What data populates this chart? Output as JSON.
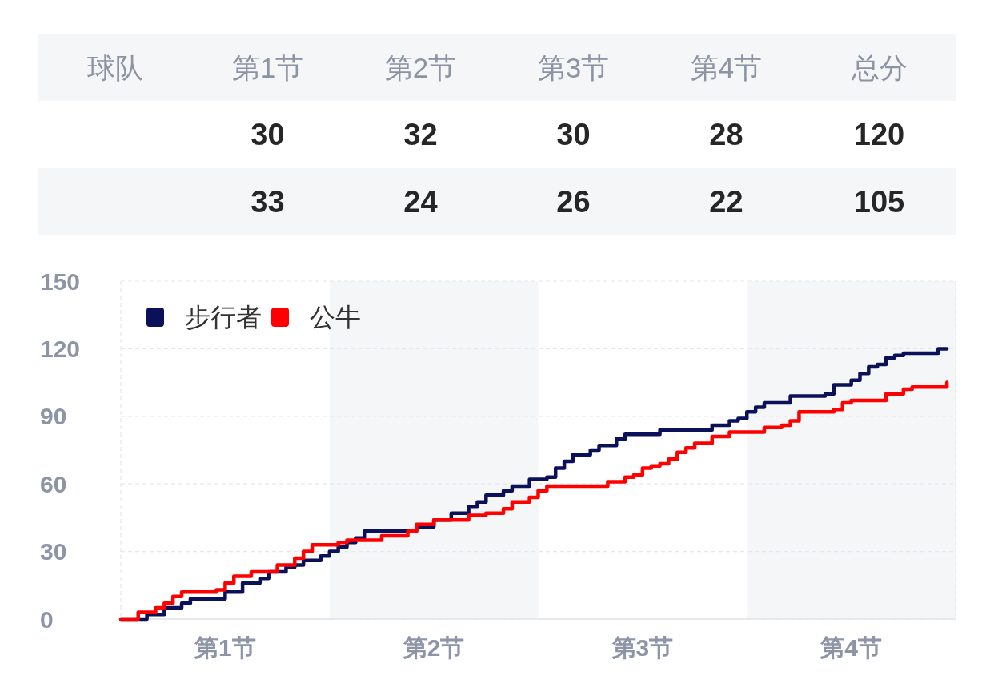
{
  "chart_data": [
    {
      "type": "other",
      "ylabel": "球队",
      "categories": [
        "第1节",
        "第2节",
        "第3节",
        "第4节",
        "总分"
      ],
      "series": [
        {
          "values": [
            30,
            32,
            30,
            28,
            120
          ]
        },
        {
          "values": [
            33,
            24,
            26,
            22,
            105
          ]
        }
      ],
      "data_labels": true
    },
    {
      "type": "step",
      "categories": [
        null,
        null,
        null,
        null,
        null,
        null,
        null,
        null,
        null,
        null,
        null,
        null,
        "第1节",
        null,
        null,
        null,
        null,
        null,
        null,
        null,
        null,
        null,
        null,
        null,
        null,
        null,
        null,
        null,
        null,
        null,
        null,
        null,
        null,
        null,
        null,
        null,
        "第2节",
        null,
        null,
        null,
        null,
        null,
        null,
        null,
        null,
        null,
        null,
        null,
        null,
        null,
        null,
        null,
        null,
        null,
        null,
        null,
        null,
        null,
        null,
        null,
        "第3节",
        null,
        null,
        null,
        null,
        null,
        null,
        null,
        null,
        null,
        null,
        null,
        null,
        null,
        null,
        null,
        null,
        null,
        null,
        null,
        null,
        null,
        null,
        null,
        "第4节",
        null,
        null,
        null,
        null,
        null,
        null,
        null,
        null,
        null,
        null,
        null,
        null
      ],
      "ylim": [
        0,
        150
      ],
      "yticks": [
        0,
        30,
        60,
        90,
        120,
        150
      ],
      "grid": "y",
      "legend": "top left",
      "series": [
        {
          "name": "步行者",
          "color": "#0b1158",
          "values": [
            0,
            0,
            0,
            2,
            2,
            5,
            5,
            7,
            9,
            9,
            9,
            9,
            12,
            12,
            16,
            16,
            18,
            21,
            21,
            23,
            24,
            26,
            26,
            28,
            30,
            32,
            34,
            36,
            39,
            39,
            39,
            39,
            39,
            39,
            41,
            41,
            44,
            44,
            47,
            47,
            50,
            52,
            55,
            55,
            57,
            59,
            59,
            62,
            62,
            63,
            67,
            70,
            73,
            73,
            75,
            77,
            77,
            80,
            82,
            82,
            82,
            82,
            84,
            84,
            84,
            84,
            84,
            84,
            86,
            86,
            88,
            89,
            92,
            94,
            96,
            96,
            96,
            99,
            99,
            99,
            99,
            100,
            104,
            104,
            106,
            109,
            112,
            113,
            116,
            117,
            118,
            118,
            118,
            118,
            120,
            120,
            null
          ]
        },
        {
          "name": "公牛",
          "color": "#fe0000",
          "values": [
            0,
            0,
            3,
            3,
            5,
            7,
            10,
            12,
            12,
            12,
            12,
            13,
            16,
            19,
            19,
            21,
            21,
            21,
            24,
            24,
            27,
            30,
            33,
            33,
            33,
            34,
            35,
            35,
            35,
            35,
            37,
            37,
            37,
            39,
            42,
            42,
            44,
            44,
            44,
            44,
            46,
            46,
            47,
            47,
            49,
            52,
            52,
            54,
            57,
            59,
            59,
            59,
            59,
            59,
            59,
            59,
            61,
            61,
            63,
            64,
            67,
            68,
            69,
            71,
            74,
            76,
            78,
            78,
            81,
            81,
            83,
            83,
            83,
            83,
            85,
            85,
            86,
            88,
            92,
            92,
            92,
            92,
            93,
            96,
            97,
            97,
            97,
            97,
            100,
            100,
            102,
            103,
            103,
            103,
            103,
            105,
            null
          ]
        }
      ]
    }
  ]
}
